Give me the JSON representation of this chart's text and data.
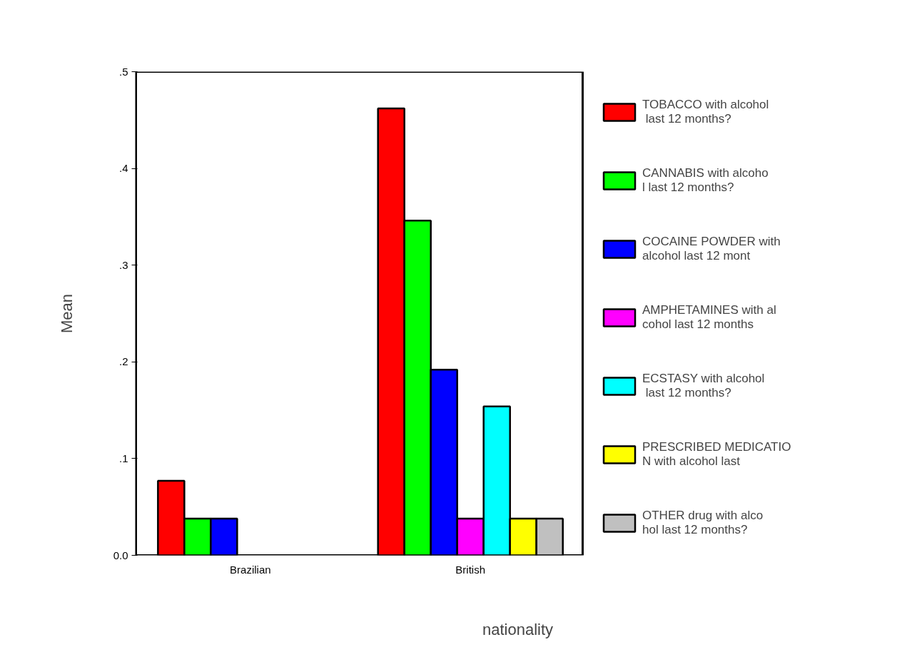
{
  "chart_data": {
    "type": "bar",
    "xlabel": "nationality",
    "ylabel": "Mean",
    "categories": [
      "Brazilian",
      "British"
    ],
    "series": [
      {
        "name": "TOBACCO with alcohol last 12 months?",
        "color": "#ff0000",
        "values": [
          0.077,
          0.462
        ]
      },
      {
        "name": "CANNABIS with alcohol last 12 months?",
        "color": "#00ff00",
        "values": [
          0.038,
          0.346
        ]
      },
      {
        "name": "COCAINE POWDER with alcohol last 12 mont",
        "color": "#0000ff",
        "values": [
          0.038,
          0.192
        ]
      },
      {
        "name": "AMPHETAMINES with alcohol last 12 months",
        "color": "#ff00ff",
        "values": [
          null,
          0.038
        ]
      },
      {
        "name": "ECSTASY with alcohol last 12 months?",
        "color": "#00ffff",
        "values": [
          null,
          0.154
        ]
      },
      {
        "name": "PRESCRIBED MEDICATION with alcohol last",
        "color": "#ffff00",
        "values": [
          null,
          0.038
        ]
      },
      {
        "name": "OTHER drug with alcohol last 12 months?",
        "color": "#c0c0c0",
        "values": [
          null,
          0.038
        ]
      }
    ],
    "ylim": [
      0,
      0.5
    ],
    "yticks": [
      {
        "value": 0,
        "label": "0.0"
      },
      {
        "value": 0.1,
        "label": ".1"
      },
      {
        "value": 0.2,
        "label": ".2"
      },
      {
        "value": 0.3,
        "label": ".3"
      },
      {
        "value": 0.4,
        "label": ".4"
      },
      {
        "value": 0.5,
        "label": ".5"
      }
    ],
    "grid": false,
    "legend": "right"
  }
}
